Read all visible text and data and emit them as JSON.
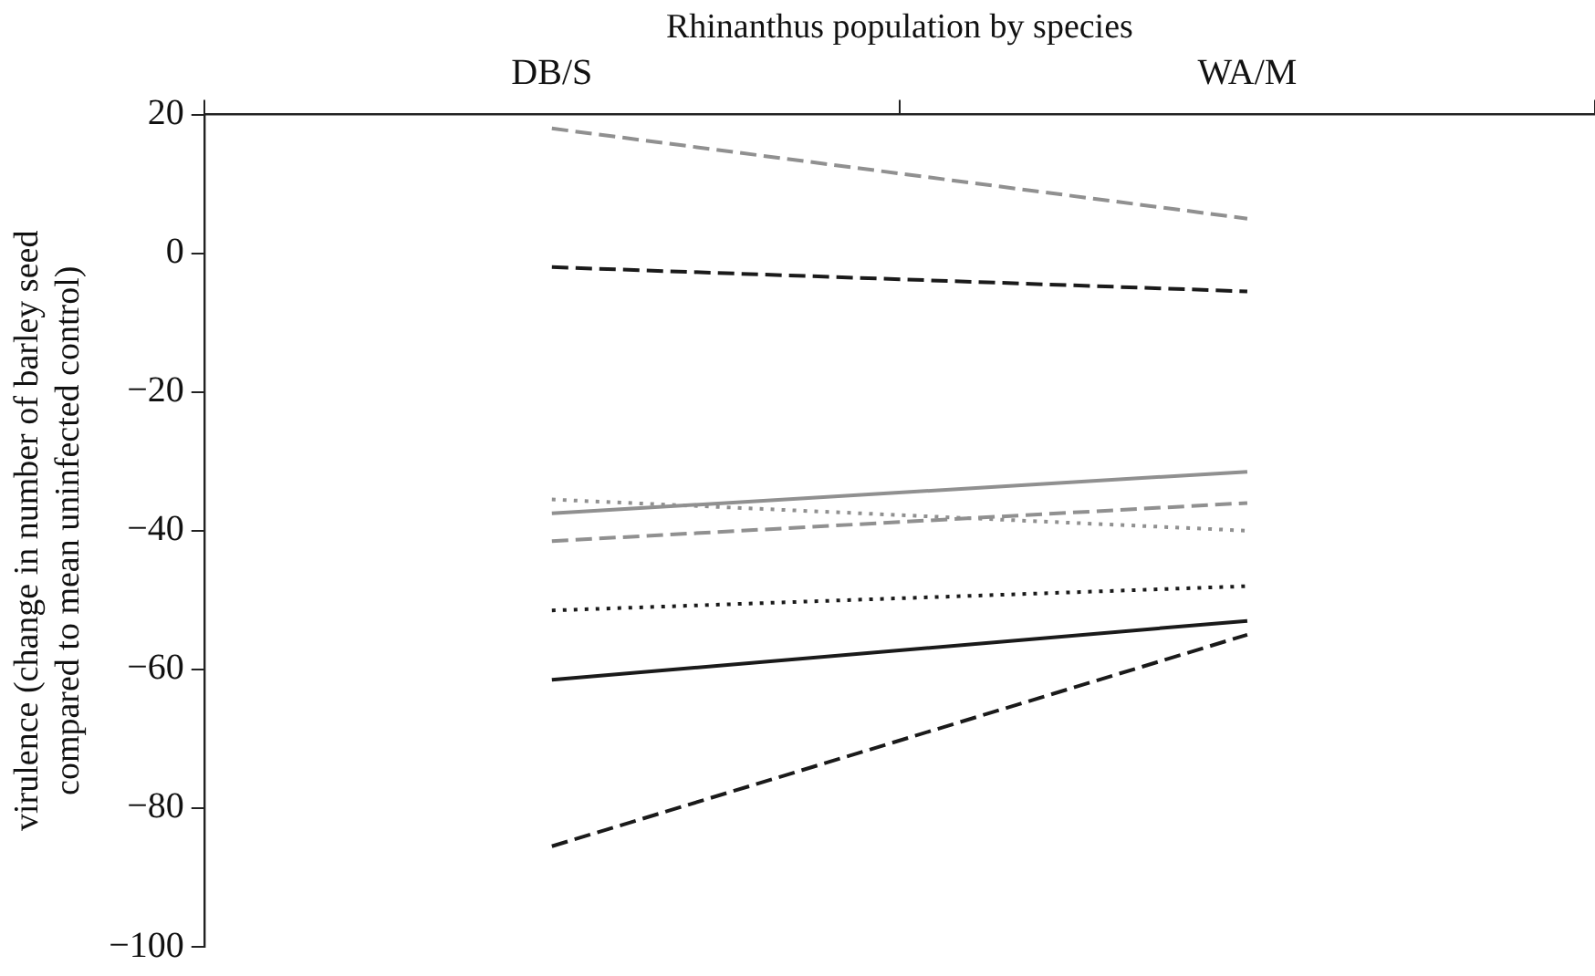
{
  "chart_data": {
    "type": "line",
    "xlabel": "Rhinanthus population by species",
    "ylabel": "virulence (change in number of barley seed compared to mean uninfected control)",
    "categories": [
      "DB/S",
      "WA/M"
    ],
    "ylim": [
      -100,
      20
    ],
    "yticks": [
      -100,
      -80,
      -60,
      -40,
      -20,
      0,
      20
    ],
    "grid": false,
    "legend": false,
    "marker": "none",
    "series": [
      {
        "color": "#909090",
        "line_style": "dashed",
        "values": [
          18,
          5
        ]
      },
      {
        "color": "#1a1a1a",
        "line_style": "dashed",
        "values": [
          -2,
          -5.5
        ]
      },
      {
        "color": "#909090",
        "line_style": "solid",
        "values": [
          -37.5,
          -31.5
        ]
      },
      {
        "color": "#909090",
        "line_style": "dotted",
        "values": [
          -35.5,
          -40
        ]
      },
      {
        "color": "#909090",
        "line_style": "dashed",
        "values": [
          -41.5,
          -36
        ]
      },
      {
        "color": "#1a1a1a",
        "line_style": "dotted",
        "values": [
          -51.5,
          -48
        ]
      },
      {
        "color": "#1a1a1a",
        "line_style": "solid",
        "values": [
          -61.5,
          -53
        ]
      },
      {
        "color": "#1a1a1a",
        "line_style": "dashed",
        "values": [
          -85.5,
          -55
        ]
      }
    ]
  }
}
